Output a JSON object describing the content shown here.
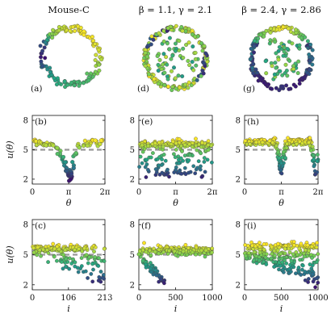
{
  "chart_data": [
    {
      "panel": "a",
      "type": "scatter",
      "title": "Mouse-C",
      "label": "(a)",
      "series": [
        {
          "x": [
            -0.9,
            -0.75,
            -0.55,
            -0.35,
            -0.1,
            0.15,
            0.4,
            0.65,
            0.85,
            0.95,
            0.9,
            0.7,
            0.45,
            0.15,
            -0.15,
            -0.45,
            -0.7,
            -0.88
          ],
          "y": [
            0.05,
            0.45,
            0.72,
            0.86,
            0.9,
            0.92,
            0.85,
            0.68,
            0.4,
            0.05,
            -0.3,
            -0.58,
            -0.75,
            -0.82,
            -0.8,
            -0.62,
            -0.35,
            -0.1
          ],
          "values": [
            0.0,
            0.2,
            0.75,
            0.85,
            0.9,
            0.95,
            0.98,
            1.0,
            0.95,
            0.9,
            0.8,
            0.65,
            0.6,
            0.6,
            0.55,
            0.5,
            0.4,
            0.1
          ]
        }
      ]
    },
    {
      "panel": "d",
      "type": "scatter",
      "title": "β = 1.1, γ = 2.1",
      "label": "(d)",
      "series": [
        {
          "name": "ring_and_interior"
        }
      ]
    },
    {
      "panel": "g",
      "type": "scatter",
      "title": "β = 2.4, γ = 2.86",
      "label": "(g)",
      "series": [
        {
          "name": "ring_and_interior"
        }
      ]
    },
    {
      "panel": "b",
      "type": "scatter",
      "label": "(b)",
      "xlabel": "θ",
      "ylabel": "u(θ)",
      "xlim": [
        0,
        6.2832
      ],
      "ylim": [
        1.5,
        8.5
      ],
      "xticks": [
        "0",
        "π",
        "2π"
      ],
      "yticks": [
        "2",
        "5",
        "8"
      ],
      "reference_line": 5,
      "series": [
        {
          "x": [
            0.2,
            0.4,
            0.6,
            0.9,
            1.2,
            1.5,
            1.8,
            2.1,
            2.4,
            2.6,
            2.8,
            3.0,
            3.1,
            3.2,
            3.3,
            3.4,
            3.5,
            3.7,
            4.0,
            4.4,
            4.8,
            5.2,
            5.6,
            6.0
          ],
          "y": [
            5.9,
            5.6,
            5.8,
            5.5,
            5.6,
            5.7,
            5.4,
            5.2,
            4.6,
            4.2,
            3.7,
            3.1,
            2.8,
            2.3,
            2.1,
            2.6,
            3.3,
            4.5,
            5.3,
            5.6,
            5.5,
            5.9,
            5.7,
            5.8
          ]
        }
      ]
    },
    {
      "panel": "e",
      "type": "scatter",
      "label": "(e)",
      "xlabel": "θ",
      "xlim": [
        0,
        6.2832
      ],
      "ylim": [
        1.5,
        8.5
      ],
      "xticks": [
        "0",
        "π",
        "2π"
      ],
      "yticks": [
        "2",
        "5",
        "8"
      ],
      "reference_line": 5,
      "series": [
        {
          "name": "band",
          "y_range": [
            2.0,
            6.2
          ]
        }
      ]
    },
    {
      "panel": "h",
      "type": "scatter",
      "label": "(h)",
      "xlabel": "θ",
      "xlim": [
        0,
        6.2832
      ],
      "ylim": [
        1.5,
        8.5
      ],
      "xticks": [
        "0",
        "π",
        "2π"
      ],
      "yticks": [
        "2",
        "5",
        "8"
      ],
      "reference_line": 5,
      "series": [
        {
          "name": "two_dips",
          "dips_at": [
            3.1416,
            6.2832
          ],
          "min_y": 2.0,
          "max_y": 6.0
        }
      ]
    },
    {
      "panel": "c",
      "type": "scatter",
      "label": "(c)",
      "xlabel": "i",
      "ylabel": "u(θ)",
      "xlim": [
        0,
        213
      ],
      "ylim": [
        1.5,
        8.5
      ],
      "xticks": [
        "0",
        "106",
        "213"
      ],
      "yticks": [
        "2",
        "5",
        "8"
      ],
      "reference_line": 5,
      "series": [
        {
          "name": "sorted",
          "y_start": 6.0,
          "y_end": 2.3,
          "n": 213
        }
      ]
    },
    {
      "panel": "f",
      "type": "scatter",
      "label": "(f)",
      "xlabel": "i",
      "xlim": [
        0,
        1000
      ],
      "ylim": [
        1.5,
        8.5
      ],
      "xticks": [
        "0",
        "500",
        "1000"
      ],
      "yticks": [
        "2",
        "5",
        "8"
      ],
      "reference_line": 5,
      "series": [
        {
          "name": "sorted",
          "y_start": 6.0,
          "y_end": 2.2,
          "n": 1000
        }
      ]
    },
    {
      "panel": "i",
      "type": "scatter",
      "label": "(i)",
      "xlabel": "i",
      "xlim": [
        0,
        1000
      ],
      "ylim": [
        1.5,
        8.5
      ],
      "xticks": [
        "0",
        "500",
        "1000"
      ],
      "yticks": [
        "2",
        "5",
        "8"
      ],
      "reference_line": 5,
      "series": [
        {
          "name": "sorted",
          "y_start": 6.3,
          "y_end": 2.3,
          "n": 1000
        }
      ]
    }
  ],
  "colors": {
    "low": "#3b0f70",
    "mid_low": "#2c6f8e",
    "mid": "#21a585",
    "mid_high": "#7ad151",
    "high": "#fde725",
    "reference_line": "#999999",
    "axis": "#111111"
  }
}
